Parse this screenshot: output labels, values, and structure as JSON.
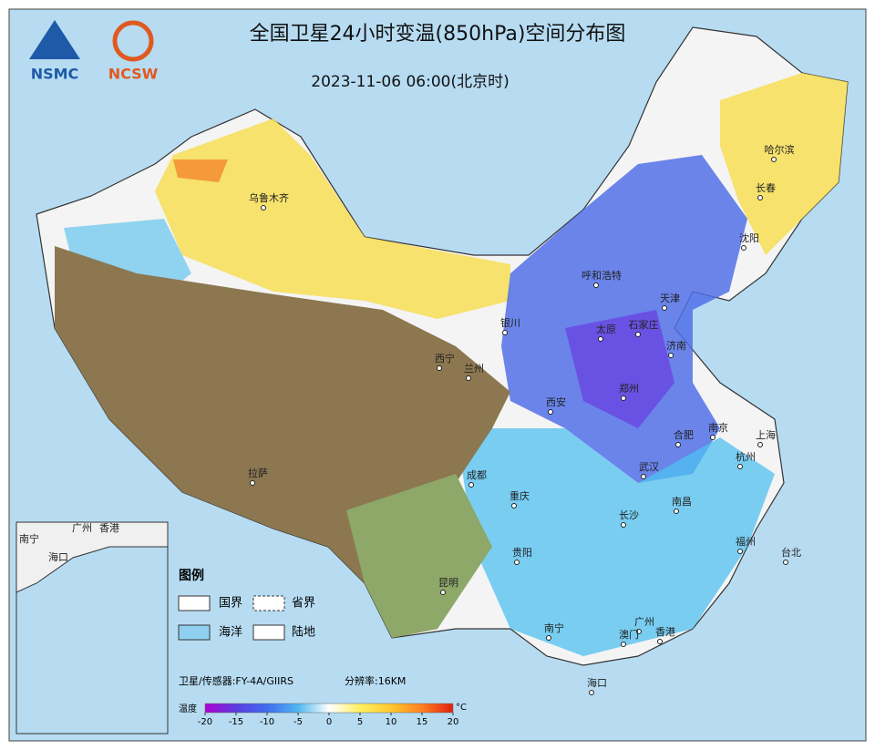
{
  "header": {
    "logo_left": "NSMC",
    "logo_right": "NCSW",
    "title": "全国卫星24小时变温(850hPa)空间分布图",
    "time": "2023-11-06 06:00(北京时)"
  },
  "cities": [
    "乌鲁木齐",
    "哈尔滨",
    "长春",
    "沈阳",
    "呼和浩特",
    "天津",
    "银川",
    "太原",
    "石家庄",
    "济南",
    "西宁",
    "兰州",
    "郑州",
    "西安",
    "合肥",
    "南京",
    "上海",
    "杭州",
    "拉萨",
    "成都",
    "武汉",
    "重庆",
    "南昌",
    "长沙",
    "福州",
    "台北",
    "贵阳",
    "昆明",
    "广州",
    "南宁",
    "澳门",
    "香港",
    "海口"
  ],
  "inset_cities": [
    "南宁",
    "广州",
    "香港",
    "海口"
  ],
  "legend": {
    "title": "图例",
    "items": [
      "国界",
      "省界",
      "海洋",
      "陆地"
    ]
  },
  "footer": {
    "sensor": "卫星/传感器:FY-4A/GIIRS",
    "resolution": "分辨率:16KM"
  },
  "colorbar": {
    "label": "温度",
    "unit": "°C",
    "ticks": [
      -20,
      -15,
      -10,
      -5,
      0,
      5,
      10,
      15,
      20
    ],
    "colors": [
      "#b000d0",
      "#5a3de0",
      "#3f6cf0",
      "#4fb8f0",
      "#ffffff",
      "#fff060",
      "#ffc830",
      "#ff8020",
      "#e02010"
    ]
  }
}
